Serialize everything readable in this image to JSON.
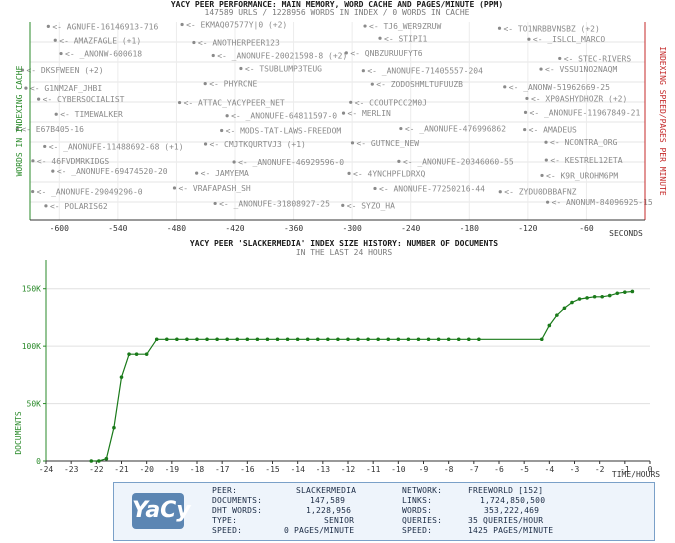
{
  "perf": {
    "title": "YACY PEER PERFORMANCE: MAIN MEMORY, WORD CACHE AND PAGES/MINUTE (PPM)",
    "subtitle": "147589 URLS / 1228956 WORDS IN INDEX / 0 WORDS IN CACHE",
    "left_axis_label": "WORDS IN INDEXING CACHE",
    "right_axis_label": "INDEXING SPEED/PAGES PER MINUTE",
    "x_unit": "SECONDS",
    "x_ticks": [
      "-600",
      "-540",
      "-480",
      "-420",
      "-360",
      "-300",
      "-240",
      "-180",
      "-120",
      "-60"
    ],
    "peers": [
      "AGNUFE-16146913-716",
      "EKMAQ07577Y|0 (+2)",
      "TJ6_WER9ZRUW",
      "TO1NRBBVNSBZ (+2)",
      "AMAZFAGLE (+1)",
      "ANOTHERPEER123",
      "STIPI1",
      "_ISLCL_MARCO",
      "_ANONW-600618",
      "_ANONUFE-20021598-8 (+2)",
      "QNBZURUUFYT6",
      "STEC-RIVERS",
      "DKSFWEEN (+2)",
      "TSUBLUMP3TEUG",
      "_ANONUFE-71405557-204",
      "VSSU1NO2NAQM",
      "G1NM2AF_JHBI",
      "PHYRCNE",
      "ZODOSHMLTUFUUZB",
      "_ANONW-51962669-25",
      "CYBERSOCIALIST",
      "ATTAC_YACYPEER_NET",
      "CCOUTPCC2M0J",
      "XP0ASHYDHOZR (+2)",
      "TIMEWALKER",
      "_ANONUFE-64811597-0",
      "MERLIN",
      "_ANONUFE-11967849-21",
      "E67B405-16",
      "MODS-TAT-LAWS-FREEDOM",
      "_ANONUFE-476996862",
      "AMADEUS",
      "_ANONUFE-11488692-68 (+1)",
      "CMJTKQURTVJ3 (+1)",
      "GUTNCE_NEW",
      "NCONTRA_ORG",
      "46FVDMRKIDGS",
      "_ANONUFE-46929596-0",
      "_ANONUFE-20346060-55",
      "KESTREL12ETA",
      "_ANONUFE-69474520-20",
      "JAMYEMA",
      "4YNCHPFLDRXQ",
      "K9R_UROHM6PM",
      "_ANONUFE-29049296-0",
      "VRAFAPASH_SH",
      "ANONUFE-77250216-44",
      "ZYDU0DBBAFNZ",
      "POLARIS62",
      "_ANONUFE-31808927-25",
      "SYZO_HA",
      "ANONUM-84096925-15"
    ]
  },
  "history": {
    "title": "YACY PEER 'SLACKERMEDIA' INDEX SIZE HISTORY: NUMBER OF DOCUMENTS",
    "subtitle": "IN THE LAST 24 HOURS",
    "y_label": "DOCUMENTS",
    "x_label": "TIME/HOURS"
  },
  "chart_data": [
    {
      "type": "scatter",
      "title": "YACY PEER PERFORMANCE: MAIN MEMORY, WORD CACHE AND PAGES/MINUTE (PPM)",
      "xlabel": "SECONDS",
      "ylabel": "WORDS IN INDEXING CACHE",
      "y2label": "INDEXING SPEED/PAGES PER MINUTE",
      "xlim": [
        -630,
        0
      ],
      "grid": true
    },
    {
      "type": "line",
      "title": "YACY PEER 'SLACKERMEDIA' INDEX SIZE HISTORY: NUMBER OF DOCUMENTS",
      "subtitle": "IN THE LAST 24 HOURS",
      "xlabel": "TIME/HOURS",
      "ylabel": "DOCUMENTS",
      "xlim": [
        -24,
        0
      ],
      "ylim": [
        0,
        175000
      ],
      "x_ticks": [
        -24,
        -23,
        -22,
        -21,
        -20,
        -19,
        -18,
        -17,
        -16,
        -15,
        -14,
        -13,
        -12,
        -11,
        -10,
        -9,
        -8,
        -7,
        -6,
        -5,
        -4,
        -3,
        -2,
        -1,
        0
      ],
      "y_ticks": [
        0,
        50000,
        100000,
        150000
      ],
      "y_tick_labels": [
        "0",
        "50K",
        "100K",
        "150K"
      ],
      "series": [
        {
          "name": "documents",
          "color": "#1a7a1a",
          "x": [
            -22.2,
            -21.9,
            -21.6,
            -21.3,
            -21.0,
            -20.7,
            -20.4,
            -20.0,
            -19.6,
            -19.2,
            -18.8,
            -18.4,
            -18.0,
            -17.6,
            -17.2,
            -16.8,
            -16.4,
            -16.0,
            -15.6,
            -15.2,
            -14.8,
            -14.4,
            -14.0,
            -13.6,
            -13.2,
            -12.8,
            -12.4,
            -12.0,
            -11.6,
            -11.2,
            -10.8,
            -10.4,
            -10.0,
            -9.6,
            -9.2,
            -8.8,
            -8.4,
            -8.0,
            -7.6,
            -7.2,
            -6.8,
            -4.3,
            -4.0,
            -3.7,
            -3.4,
            -3.1,
            -2.8,
            -2.5,
            -2.2,
            -1.9,
            -1.6,
            -1.3,
            -1.0,
            -0.7
          ],
          "y": [
            0,
            0,
            2000,
            29000,
            73000,
            93000,
            93000,
            93000,
            106000,
            106000,
            106000,
            106000,
            106000,
            106000,
            106000,
            106000,
            106000,
            106000,
            106000,
            106000,
            106000,
            106000,
            106000,
            106000,
            106000,
            106000,
            106000,
            106000,
            106000,
            106000,
            106000,
            106000,
            106000,
            106000,
            106000,
            106000,
            106000,
            106000,
            106000,
            106000,
            106000,
            106000,
            118000,
            127000,
            133000,
            138000,
            141000,
            142000,
            143000,
            143000,
            144000,
            146000,
            147000,
            147589
          ]
        }
      ]
    }
  ],
  "info": {
    "logo_text": "YaCy",
    "peer_label": "PEER:",
    "peer_value": "SLACKERMEDIA",
    "documents_label": "DOCUMENTS:",
    "documents_value": "147,589",
    "dht_words_label": "DHT WORDS:",
    "dht_words_value": "1,228,956",
    "type_label": "TYPE:",
    "type_value": "SENIOR",
    "speed_label": "SPEED:",
    "speed_value": "0 PAGES/MINUTE",
    "network_label": "NETWORK:",
    "network_value": "FREEWORLD [152]",
    "links_label": "LINKS:",
    "links_value": "1,724,850,500",
    "words_label": "WORDS:",
    "words_value": "353,222,469",
    "queries_label": "QUERIES:",
    "queries_value": "35 QUERIES/HOUR",
    "net_speed_label": "SPEED:",
    "net_speed_value": "1425 PAGES/MINUTE"
  },
  "colors": {
    "axis_left": "#2a8a2a",
    "axis_right": "#c42a2a",
    "grid": "#d8d8d8",
    "peer_text": "#8a8a8a",
    "title": "#1a1a1a",
    "line": "#1a7a1a",
    "info_bg": "#eef4fb",
    "info_border": "#7aa0c8"
  }
}
